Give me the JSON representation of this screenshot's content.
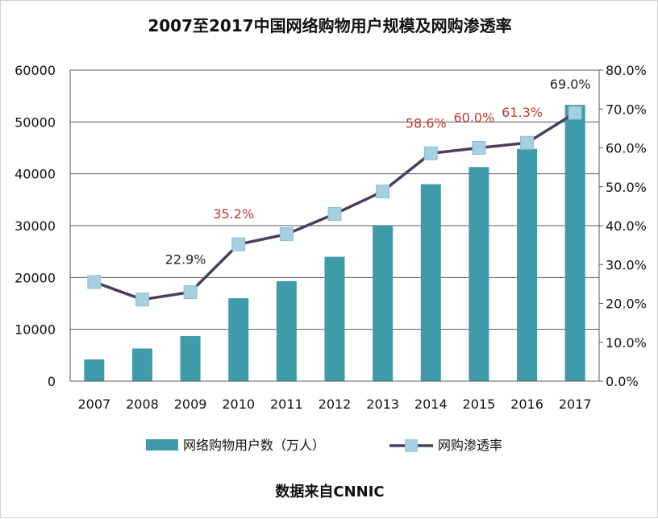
{
  "chart_data": {
    "type": "bar+line",
    "title": "2007至2017中国网络购物用户规模及网购渗透率",
    "source_note": "数据来自CNNIC",
    "categories": [
      "2007",
      "2008",
      "2009",
      "2010",
      "2011",
      "2012",
      "2013",
      "2014",
      "2015",
      "2016",
      "2017"
    ],
    "series": [
      {
        "name": "网络购物用户数（万人）",
        "kind": "bar",
        "axis": "left",
        "color": "#3f9aaa",
        "values": [
          4200,
          6300,
          8700,
          16000,
          19300,
          24000,
          30000,
          38000,
          41300,
          44800,
          53300
        ]
      },
      {
        "name": "网购渗透率",
        "kind": "line",
        "axis": "right",
        "color": "#4b3d5e",
        "marker_color": "#a6cfe0",
        "values": [
          25.5,
          21.0,
          22.9,
          35.2,
          37.8,
          43.0,
          48.8,
          58.6,
          60.0,
          61.3,
          69.0
        ]
      }
    ],
    "y_left": {
      "min": 0,
      "max": 60000,
      "ticks": [
        "0",
        "10000",
        "20000",
        "30000",
        "40000",
        "50000",
        "60000"
      ]
    },
    "y_right": {
      "min": 0,
      "max": 80,
      "ticks": [
        "0.0%",
        "10.0%",
        "20.0%",
        "30.0%",
        "40.0%",
        "50.0%",
        "60.0%",
        "70.0%",
        "80.0%"
      ]
    },
    "annotations": [
      {
        "index": 2,
        "text": "22.9%",
        "color": "#222222"
      },
      {
        "index": 3,
        "text": "35.2%",
        "color": "#c0392b"
      },
      {
        "index": 7,
        "text": "58.6%",
        "color": "#c0392b"
      },
      {
        "index": 8,
        "text": "60.0%",
        "color": "#c0392b"
      },
      {
        "index": 9,
        "text": "61.3%",
        "color": "#c0392b"
      },
      {
        "index": 10,
        "text": "69.0%",
        "color": "#222222"
      }
    ],
    "legend_position": "bottom",
    "grid": true
  }
}
